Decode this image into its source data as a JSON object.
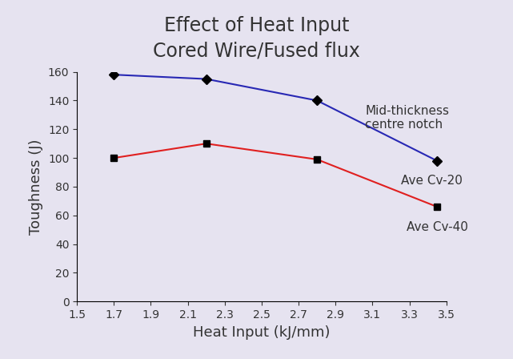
{
  "chart_data": {
    "type": "line",
    "title": "Effect of Heat Input",
    "subtitle": "Cored Wire/Fused flux",
    "x_label": "Heat Input (kJ/mm)",
    "y_label": "Toughness (J)",
    "annotation": "Mid-thickness\ncentre notch",
    "x": [
      1.7,
      2.2,
      2.8,
      3.45
    ],
    "series": [
      {
        "name": "Ave Cv-20",
        "color": "#2828b4",
        "marker": "diamond",
        "line_style": "solid",
        "values": [
          158,
          155,
          140,
          98
        ]
      },
      {
        "name": "Ave Cv-40",
        "color": "#e02020",
        "marker": "square",
        "line_style": "solid",
        "values": [
          100,
          110,
          99,
          66
        ]
      }
    ],
    "xlim": [
      1.5,
      3.5
    ],
    "xticks": [
      1.5,
      1.7,
      1.9,
      2.1,
      2.3,
      2.5,
      2.7,
      2.9,
      3.1,
      3.3,
      3.5
    ],
    "ylim": [
      0,
      160
    ],
    "yticks": [
      0,
      20,
      40,
      60,
      80,
      100,
      120,
      140,
      160
    ],
    "grid": false
  }
}
